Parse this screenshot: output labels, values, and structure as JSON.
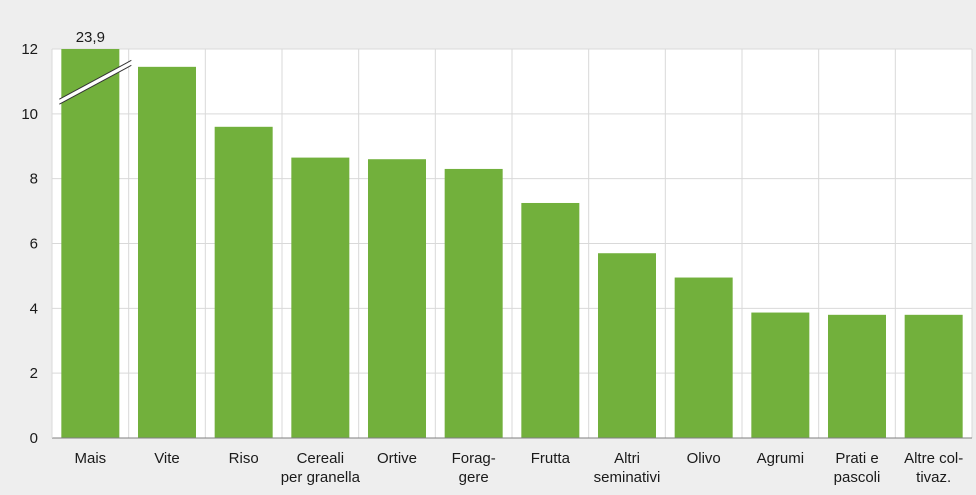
{
  "colors": {
    "bar": "#72b03c",
    "grid": "#d9d9d9",
    "background": "#eeeeee",
    "plot_background": "#ffffff",
    "axis": "#7f7f7f",
    "break_mark": "#333333"
  },
  "chart_data": {
    "type": "bar",
    "title": "",
    "xlabel": "",
    "ylabel": "",
    "ylim": [
      0,
      12
    ],
    "yticks": [
      0,
      2,
      4,
      6,
      8,
      10,
      12
    ],
    "grid": true,
    "categories": [
      [
        "Mais"
      ],
      [
        "Vite"
      ],
      [
        "Riso"
      ],
      [
        "Cereali",
        "per granella"
      ],
      [
        "Ortive"
      ],
      [
        "Forag-",
        "gere"
      ],
      [
        "Frutta"
      ],
      [
        "Altri",
        "seminativi"
      ],
      [
        "Olivo"
      ],
      [
        "Agrumi"
      ],
      [
        "Prati e",
        "pascoli"
      ],
      [
        "Altre col-",
        "tivaz."
      ]
    ],
    "values": [
      23.9,
      11.45,
      9.6,
      8.65,
      8.6,
      8.3,
      7.25,
      5.7,
      4.95,
      3.87,
      3.8,
      3.8
    ],
    "axis_break": {
      "category_index": 0,
      "label": "23,9"
    }
  }
}
